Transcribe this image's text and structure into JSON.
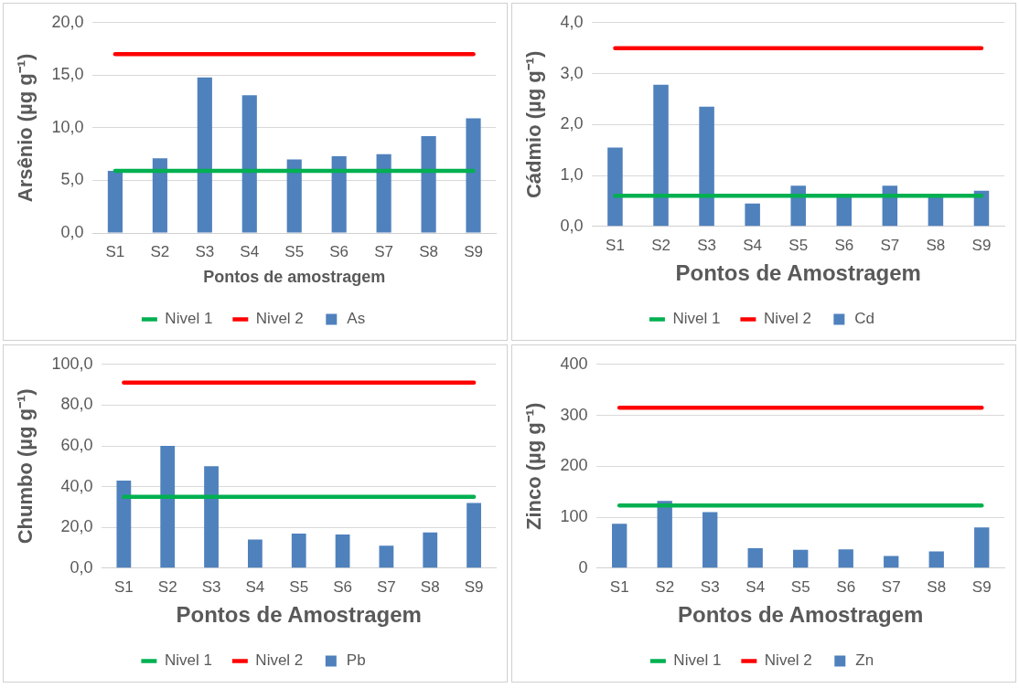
{
  "chart_data": [
    {
      "type": "bar",
      "ylabel": "Arsênio (µg g⁻¹)",
      "xlabel": "Pontos de amostragem",
      "categories": [
        "S1",
        "S2",
        "S3",
        "S4",
        "S5",
        "S6",
        "S7",
        "S8",
        "S9"
      ],
      "series": [
        {
          "name": "As",
          "color": "#4f81bd",
          "values": [
            5.9,
            7.1,
            14.8,
            13.1,
            7.0,
            7.3,
            7.5,
            9.2,
            10.9
          ]
        },
        {
          "name": "Nivel 1",
          "type": "line",
          "color": "#00b050",
          "values": [
            5.9,
            5.9,
            5.9,
            5.9,
            5.9,
            5.9,
            5.9,
            5.9,
            5.9
          ]
        },
        {
          "name": "Nivel 2",
          "type": "line",
          "color": "#ff0000",
          "values": [
            17.0,
            17.0,
            17.0,
            17.0,
            17.0,
            17.0,
            17.0,
            17.0,
            17.0
          ]
        }
      ],
      "ylim": [
        0,
        20
      ],
      "yticks": [
        {
          "value": 0,
          "label": "0,0"
        },
        {
          "value": 5,
          "label": "5,0"
        },
        {
          "value": 10,
          "label": "10,0"
        },
        {
          "value": 15,
          "label": "15,0"
        },
        {
          "value": 20,
          "label": "20,0"
        }
      ],
      "grid": "y",
      "legend": "bottom",
      "marker": "none"
    },
    {
      "type": "bar",
      "ylabel": "Cádmio (µg g⁻¹)",
      "xlabel": "Pontos de Amostragem",
      "categories": [
        "S1",
        "S2",
        "S3",
        "S4",
        "S5",
        "S6",
        "S7",
        "S8",
        "S9"
      ],
      "series": [
        {
          "name": "Cd",
          "color": "#4f81bd",
          "values": [
            1.55,
            2.78,
            2.35,
            0.45,
            0.8,
            0.6,
            0.8,
            0.6,
            0.7
          ]
        },
        {
          "name": "Nivel 1",
          "type": "line",
          "color": "#00b050",
          "values": [
            0.6,
            0.6,
            0.6,
            0.6,
            0.6,
            0.6,
            0.6,
            0.6,
            0.6
          ]
        },
        {
          "name": "Nivel 2",
          "type": "line",
          "color": "#ff0000",
          "values": [
            3.5,
            3.5,
            3.5,
            3.5,
            3.5,
            3.5,
            3.5,
            3.5,
            3.5
          ]
        }
      ],
      "ylim": [
        0,
        4
      ],
      "yticks": [
        {
          "value": 0,
          "label": "0,0"
        },
        {
          "value": 1,
          "label": "1,0"
        },
        {
          "value": 2,
          "label": "2,0"
        },
        {
          "value": 3,
          "label": "3,0"
        },
        {
          "value": 4,
          "label": "4,0"
        }
      ],
      "grid": "y",
      "legend": "bottom",
      "marker": "none"
    },
    {
      "type": "bar",
      "ylabel": "Chumbo (µg g⁻¹)",
      "xlabel": "Pontos de Amostragem",
      "categories": [
        "S1",
        "S2",
        "S3",
        "S4",
        "S5",
        "S6",
        "S7",
        "S8",
        "S9"
      ],
      "series": [
        {
          "name": "Pb",
          "color": "#4f81bd",
          "values": [
            43,
            60,
            50,
            14,
            17,
            16.5,
            11,
            17.5,
            32
          ]
        },
        {
          "name": "Nivel 1",
          "type": "line",
          "color": "#00b050",
          "values": [
            35,
            35,
            35,
            35,
            35,
            35,
            35,
            35,
            35
          ]
        },
        {
          "name": "Nivel 2",
          "type": "line",
          "color": "#ff0000",
          "values": [
            91,
            91,
            91,
            91,
            91,
            91,
            91,
            91,
            91
          ]
        }
      ],
      "ylim": [
        0,
        100
      ],
      "yticks": [
        {
          "value": 0,
          "label": "0,0"
        },
        {
          "value": 20,
          "label": "20,0"
        },
        {
          "value": 40,
          "label": "40,0"
        },
        {
          "value": 60,
          "label": "60,0"
        },
        {
          "value": 80,
          "label": "80,0"
        },
        {
          "value": 100,
          "label": "100,0"
        }
      ],
      "grid": "y",
      "legend": "bottom",
      "marker": "none"
    },
    {
      "type": "bar",
      "ylabel": "Zinco (µg g⁻¹)",
      "xlabel": "Pontos de Amostragem",
      "categories": [
        "S1",
        "S2",
        "S3",
        "S4",
        "S5",
        "S6",
        "S7",
        "S8",
        "S9"
      ],
      "series": [
        {
          "name": "Zn",
          "color": "#4f81bd",
          "values": [
            87,
            132,
            110,
            39,
            36,
            37,
            24,
            33,
            80
          ]
        },
        {
          "name": "Nivel 1",
          "type": "line",
          "color": "#00b050",
          "values": [
            123,
            123,
            123,
            123,
            123,
            123,
            123,
            123,
            123
          ]
        },
        {
          "name": "Nivel 2",
          "type": "line",
          "color": "#ff0000",
          "values": [
            315,
            315,
            315,
            315,
            315,
            315,
            315,
            315,
            315
          ]
        }
      ],
      "ylim": [
        0,
        400
      ],
      "yticks": [
        0,
        100,
        200,
        300,
        400
      ],
      "grid": "y",
      "legend": "bottom",
      "marker": "none"
    }
  ]
}
